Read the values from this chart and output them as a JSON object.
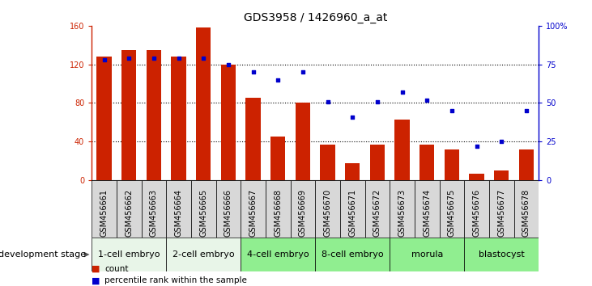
{
  "title": "GDS3958 / 1426960_a_at",
  "samples": [
    "GSM456661",
    "GSM456662",
    "GSM456663",
    "GSM456664",
    "GSM456665",
    "GSM456666",
    "GSM456667",
    "GSM456668",
    "GSM456669",
    "GSM456670",
    "GSM456671",
    "GSM456672",
    "GSM456673",
    "GSM456674",
    "GSM456675",
    "GSM456676",
    "GSM456677",
    "GSM456678"
  ],
  "counts": [
    128,
    135,
    135,
    128,
    158,
    120,
    85,
    45,
    80,
    37,
    18,
    37,
    63,
    37,
    32,
    7,
    10,
    32
  ],
  "percentiles": [
    78,
    79,
    79,
    79,
    79,
    75,
    70,
    65,
    70,
    51,
    41,
    51,
    57,
    52,
    45,
    22,
    25,
    45
  ],
  "bar_color": "#cc2200",
  "dot_color": "#0000cc",
  "ylim_left": [
    0,
    160
  ],
  "ylim_right": [
    0,
    100
  ],
  "yticks_left": [
    0,
    40,
    80,
    120,
    160
  ],
  "yticks_right": [
    0,
    25,
    50,
    75,
    100
  ],
  "yticklabels_right": [
    "0",
    "25",
    "50",
    "75",
    "100%"
  ],
  "stages": [
    {
      "label": "1-cell embryo",
      "start": 0,
      "end": 3
    },
    {
      "label": "2-cell embryo",
      "start": 3,
      "end": 6
    },
    {
      "label": "4-cell embryo",
      "start": 6,
      "end": 9
    },
    {
      "label": "8-cell embryo",
      "start": 9,
      "end": 12
    },
    {
      "label": "morula",
      "start": 12,
      "end": 15
    },
    {
      "label": "blastocyst",
      "start": 15,
      "end": 18
    }
  ],
  "stage_colors": [
    "#e8f5e8",
    "#e8f5e8",
    "#90ee90",
    "#90ee90",
    "#90ee90",
    "#90ee90"
  ],
  "sample_box_color": "#d8d8d8",
  "dev_stage_label": "development stage",
  "legend_count_label": "count",
  "legend_percentile_label": "percentile rank within the sample",
  "bar_width": 0.6,
  "title_fontsize": 10,
  "tick_fontsize": 7,
  "stage_fontsize": 8,
  "label_fontsize": 8
}
